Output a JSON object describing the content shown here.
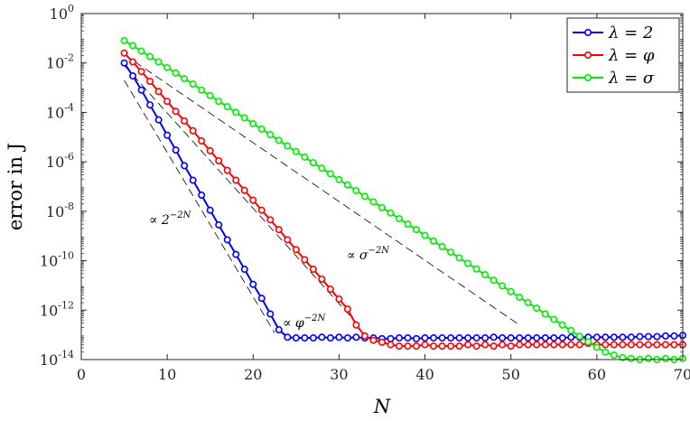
{
  "chart_data": {
    "type": "line",
    "title": "",
    "xlabel": "N",
    "ylabel": "error in J",
    "xlim": [
      0,
      70
    ],
    "ylim": [
      1e-14,
      1
    ],
    "yscale": "log",
    "x_ticks": [
      0,
      10,
      20,
      30,
      40,
      50,
      60,
      70
    ],
    "y_ticks": [
      {
        "value": 1,
        "base": "10",
        "exp": "0"
      },
      {
        "value": 0.01,
        "base": "10",
        "exp": "-2"
      },
      {
        "value": 0.0001,
        "base": "10",
        "exp": "-4"
      },
      {
        "value": 1e-06,
        "base": "10",
        "exp": "-6"
      },
      {
        "value": 1e-08,
        "base": "10",
        "exp": "-8"
      },
      {
        "value": 1e-10,
        "base": "10",
        "exp": "-10"
      },
      {
        "value": 1e-12,
        "base": "10",
        "exp": "-12"
      },
      {
        "value": 1e-14,
        "base": "10",
        "exp": "-14"
      }
    ],
    "legend_position": "top-right",
    "series": [
      {
        "name": "λ = 2",
        "color": "#0000ff",
        "marker": "circle",
        "x": [
          5,
          6,
          7,
          8,
          9,
          10,
          11,
          12,
          13,
          14,
          15,
          16,
          17,
          18,
          19,
          20,
          21,
          22,
          23,
          24,
          25,
          26,
          27,
          28,
          29,
          30,
          31,
          32,
          33,
          34,
          35,
          36,
          37,
          38,
          39,
          40,
          41,
          42,
          43,
          44,
          45,
          46,
          47,
          48,
          49,
          50,
          51,
          52,
          53,
          54,
          55,
          56,
          57,
          58,
          59,
          60,
          61,
          62,
          63,
          64,
          65,
          66,
          67,
          68,
          69,
          70
        ],
        "y": [
          0.01,
          0.003,
          0.0008,
          0.0002,
          5e-05,
          1.2e-05,
          3e-06,
          7e-07,
          1.8e-07,
          4.5e-08,
          1.1e-08,
          2.8e-09,
          7e-10,
          1.8e-10,
          4.5e-11,
          1.1e-11,
          3e-12,
          7e-13,
          1.6e-13,
          8e-14,
          7.5e-14,
          7.5e-14,
          7.5e-14,
          8e-14,
          7.5e-14,
          8e-14,
          7.5e-14,
          8e-14,
          7.5e-14,
          7.5e-14,
          7e-14,
          7e-14,
          7.5e-14,
          7.5e-14,
          7e-14,
          7.5e-14,
          7.5e-14,
          7.5e-14,
          7.5e-14,
          7.5e-14,
          7.5e-14,
          7.5e-14,
          7.5e-14,
          8e-14,
          7.5e-14,
          7.5e-14,
          7.5e-14,
          7.5e-14,
          7.5e-14,
          7.5e-14,
          7.5e-14,
          7.5e-14,
          8e-14,
          8e-14,
          8e-14,
          8e-14,
          8e-14,
          8e-14,
          8e-14,
          8e-14,
          8.5e-14,
          8.5e-14,
          8.5e-14,
          9e-14,
          9e-14,
          9.5e-14
        ]
      },
      {
        "name": "λ = φ",
        "color": "#ff0000",
        "marker": "circle",
        "x": [
          5,
          6,
          7,
          8,
          9,
          10,
          11,
          12,
          13,
          14,
          15,
          16,
          17,
          18,
          19,
          20,
          21,
          22,
          23,
          24,
          25,
          26,
          27,
          28,
          29,
          30,
          31,
          32,
          33,
          34,
          35,
          36,
          37,
          38,
          39,
          40,
          41,
          42,
          43,
          44,
          45,
          46,
          47,
          48,
          49,
          50,
          51,
          52,
          53,
          54,
          55,
          56,
          57,
          58,
          59,
          60,
          61,
          62,
          63,
          64,
          65,
          66,
          67,
          68,
          69,
          70
        ],
        "y": [
          0.025,
          0.011,
          0.0045,
          0.0018,
          0.0007,
          0.00028,
          0.00011,
          4.5e-05,
          1.8e-05,
          7e-06,
          2.8e-06,
          1.1e-06,
          4.5e-07,
          1.8e-07,
          7e-08,
          2.8e-08,
          1.1e-08,
          4.5e-09,
          1.8e-09,
          7e-10,
          2.8e-10,
          1.1e-10,
          4.5e-11,
          1.8e-11,
          7e-12,
          2.8e-12,
          1.1e-12,
          2.5e-13,
          9e-14,
          6e-14,
          5e-14,
          4e-14,
          3.5e-14,
          3.5e-14,
          3.5e-14,
          4e-14,
          3.5e-14,
          3.5e-14,
          3.5e-14,
          3.5e-14,
          4e-14,
          3.5e-14,
          4e-14,
          3.5e-14,
          4e-14,
          3.5e-14,
          4e-14,
          4e-14,
          4e-14,
          4e-14,
          4e-14,
          4e-14,
          4e-14,
          4e-14,
          4.5e-14,
          4e-14,
          4e-14,
          4e-14,
          4e-14,
          4e-14,
          4e-14,
          4e-14,
          4e-14,
          4e-14,
          4e-14,
          4e-14
        ]
      },
      {
        "name": "λ = σ",
        "color": "#00ee00",
        "marker": "circle",
        "x": [
          5,
          6,
          7,
          8,
          9,
          10,
          11,
          12,
          13,
          14,
          15,
          16,
          17,
          18,
          19,
          20,
          21,
          22,
          23,
          24,
          25,
          26,
          27,
          28,
          29,
          30,
          31,
          32,
          33,
          34,
          35,
          36,
          37,
          38,
          39,
          40,
          41,
          42,
          43,
          44,
          45,
          46,
          47,
          48,
          49,
          50,
          51,
          52,
          53,
          54,
          55,
          56,
          57,
          58,
          59,
          60,
          61,
          62,
          63,
          64,
          65,
          66,
          67,
          68,
          69,
          70
        ],
        "y": [
          0.08,
          0.05,
          0.03,
          0.018,
          0.011,
          0.0065,
          0.0039,
          0.0023,
          0.0014,
          0.0008,
          0.00048,
          0.00028,
          0.00017,
          0.0001,
          6e-05,
          3.5e-05,
          2.1e-05,
          1.25e-05,
          7.4e-06,
          4.4e-06,
          2.6e-06,
          1.55e-06,
          9.2e-07,
          5.5e-07,
          3.25e-07,
          1.9e-07,
          1.15e-07,
          6.8e-08,
          4e-08,
          2.4e-08,
          1.4e-08,
          8.5e-09,
          5e-09,
          3e-09,
          1.8e-09,
          1.05e-09,
          6.2e-10,
          3.7e-10,
          2.2e-10,
          1.3e-10,
          7.7e-11,
          4.6e-11,
          2.7e-11,
          1.6e-11,
          9.5e-12,
          5.6e-12,
          3.3e-12,
          2e-12,
          1.2e-12,
          7e-13,
          4.2e-13,
          2.5e-13,
          1.5e-13,
          8.7e-14,
          5.2e-14,
          3.1e-14,
          2e-14,
          1.5e-14,
          1.2e-14,
          1.1e-14,
          1e-14,
          1.1e-14,
          1e-14,
          1.1e-14,
          1e-14,
          1.1e-14
        ]
      }
    ],
    "reference_lines": [
      {
        "label": "∝ 2",
        "label_sup": "−2N",
        "x": [
          5,
          22.5
        ],
        "y": [
          0.002,
          1.2e-13
        ]
      },
      {
        "label": "∝ φ",
        "label_sup": "−2N",
        "x": [
          5,
          32.5
        ],
        "y": [
          0.008,
          2e-13
        ]
      },
      {
        "label": "∝ σ",
        "label_sup": "−2N",
        "x": [
          5,
          51
        ],
        "y": [
          0.022,
          2.5e-13
        ]
      }
    ]
  }
}
